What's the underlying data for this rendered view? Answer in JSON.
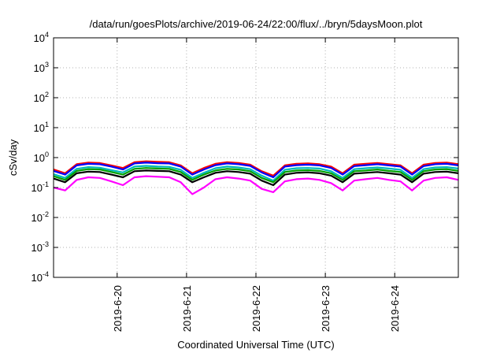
{
  "chart_data": {
    "type": "line",
    "title": "/data/run/goesPlots/archive/2019-06-24/22:00/flux/../bryn/5daysMoon.plot",
    "xlabel": "Coordinated Universal Time (UTC)",
    "ylabel": "cSv/day",
    "yscale": "log",
    "ylim": [
      0.0001,
      10000
    ],
    "ytick_labels": [
      {
        "value": 0.0001,
        "base": "10",
        "exp": "-4"
      },
      {
        "value": 0.001,
        "base": "10",
        "exp": "-3"
      },
      {
        "value": 0.01,
        "base": "10",
        "exp": "-2"
      },
      {
        "value": 0.1,
        "base": "10",
        "exp": "-1"
      },
      {
        "value": 1,
        "base": "10",
        "exp": "0"
      },
      {
        "value": 10,
        "base": "10",
        "exp": "1"
      },
      {
        "value": 100,
        "base": "10",
        "exp": "2"
      },
      {
        "value": 1000,
        "base": "10",
        "exp": "3"
      },
      {
        "value": 10000,
        "base": "10",
        "exp": "4"
      }
    ],
    "xlim": [
      "2019-06-19 02:00",
      "2019-06-24 22:00"
    ],
    "xtick_labels": [
      {
        "value": "2019-06-20 00:00",
        "label": "2019-6-20"
      },
      {
        "value": "2019-06-21 00:00",
        "label": "2019-6-21"
      },
      {
        "value": "2019-06-22 00:00",
        "label": "2019-6-22"
      },
      {
        "value": "2019-06-23 00:00",
        "label": "2019-6-23"
      },
      {
        "value": "2019-06-24 00:00",
        "label": "2019-6-24"
      }
    ],
    "grid": true,
    "x": [
      "2019-06-19 02:00",
      "2019-06-19 06:00",
      "2019-06-19 10:00",
      "2019-06-19 14:00",
      "2019-06-19 18:00",
      "2019-06-19 22:00",
      "2019-06-20 02:00",
      "2019-06-20 06:00",
      "2019-06-20 10:00",
      "2019-06-20 14:00",
      "2019-06-20 18:00",
      "2019-06-20 22:00",
      "2019-06-21 02:00",
      "2019-06-21 06:00",
      "2019-06-21 10:00",
      "2019-06-21 14:00",
      "2019-06-21 18:00",
      "2019-06-21 22:00",
      "2019-06-22 02:00",
      "2019-06-22 06:00",
      "2019-06-22 10:00",
      "2019-06-22 14:00",
      "2019-06-22 18:00",
      "2019-06-22 22:00",
      "2019-06-23 02:00",
      "2019-06-23 06:00",
      "2019-06-23 10:00",
      "2019-06-23 14:00",
      "2019-06-23 18:00",
      "2019-06-23 22:00",
      "2019-06-24 02:00",
      "2019-06-24 06:00",
      "2019-06-24 10:00",
      "2019-06-24 14:00",
      "2019-06-24 18:00",
      "2019-06-24 22:00"
    ],
    "series": [
      {
        "color": "#ff0000",
        "values": [
          0.4,
          0.3,
          0.6,
          0.68,
          0.66,
          0.55,
          0.45,
          0.7,
          0.75,
          0.72,
          0.7,
          0.55,
          0.3,
          0.45,
          0.62,
          0.7,
          0.66,
          0.58,
          0.35,
          0.25,
          0.55,
          0.62,
          0.64,
          0.6,
          0.5,
          0.3,
          0.58,
          0.62,
          0.66,
          0.6,
          0.55,
          0.3,
          0.58,
          0.66,
          0.68,
          0.6
        ]
      },
      {
        "color": "#0000ff",
        "values": [
          0.36,
          0.27,
          0.55,
          0.62,
          0.6,
          0.5,
          0.4,
          0.64,
          0.68,
          0.65,
          0.64,
          0.5,
          0.27,
          0.4,
          0.56,
          0.64,
          0.6,
          0.53,
          0.32,
          0.22,
          0.5,
          0.56,
          0.58,
          0.55,
          0.45,
          0.27,
          0.52,
          0.56,
          0.6,
          0.55,
          0.5,
          0.27,
          0.52,
          0.6,
          0.62,
          0.55
        ]
      },
      {
        "color": "#00b8b8",
        "values": [
          0.28,
          0.21,
          0.42,
          0.48,
          0.46,
          0.38,
          0.32,
          0.5,
          0.53,
          0.5,
          0.49,
          0.39,
          0.21,
          0.31,
          0.44,
          0.5,
          0.47,
          0.41,
          0.25,
          0.17,
          0.39,
          0.44,
          0.45,
          0.43,
          0.35,
          0.21,
          0.41,
          0.44,
          0.47,
          0.43,
          0.39,
          0.21,
          0.41,
          0.47,
          0.48,
          0.43
        ]
      },
      {
        "color": "#00a000",
        "values": [
          0.24,
          0.18,
          0.36,
          0.41,
          0.4,
          0.33,
          0.27,
          0.42,
          0.45,
          0.43,
          0.42,
          0.33,
          0.18,
          0.27,
          0.37,
          0.42,
          0.4,
          0.35,
          0.21,
          0.15,
          0.33,
          0.37,
          0.38,
          0.36,
          0.3,
          0.18,
          0.35,
          0.37,
          0.4,
          0.36,
          0.33,
          0.18,
          0.35,
          0.4,
          0.41,
          0.36
        ]
      },
      {
        "color": "#000000",
        "values": [
          0.2,
          0.15,
          0.3,
          0.34,
          0.33,
          0.27,
          0.22,
          0.35,
          0.37,
          0.36,
          0.35,
          0.27,
          0.15,
          0.22,
          0.31,
          0.35,
          0.33,
          0.29,
          0.17,
          0.12,
          0.27,
          0.31,
          0.32,
          0.3,
          0.25,
          0.15,
          0.29,
          0.31,
          0.33,
          0.3,
          0.27,
          0.15,
          0.29,
          0.33,
          0.34,
          0.3
        ]
      },
      {
        "color": "#ff00ff",
        "values": [
          0.1,
          0.08,
          0.18,
          0.22,
          0.21,
          0.16,
          0.12,
          0.22,
          0.24,
          0.23,
          0.22,
          0.15,
          0.06,
          0.1,
          0.19,
          0.22,
          0.2,
          0.17,
          0.09,
          0.07,
          0.16,
          0.19,
          0.2,
          0.18,
          0.14,
          0.08,
          0.17,
          0.19,
          0.21,
          0.18,
          0.16,
          0.08,
          0.17,
          0.21,
          0.22,
          0.18
        ]
      }
    ]
  }
}
